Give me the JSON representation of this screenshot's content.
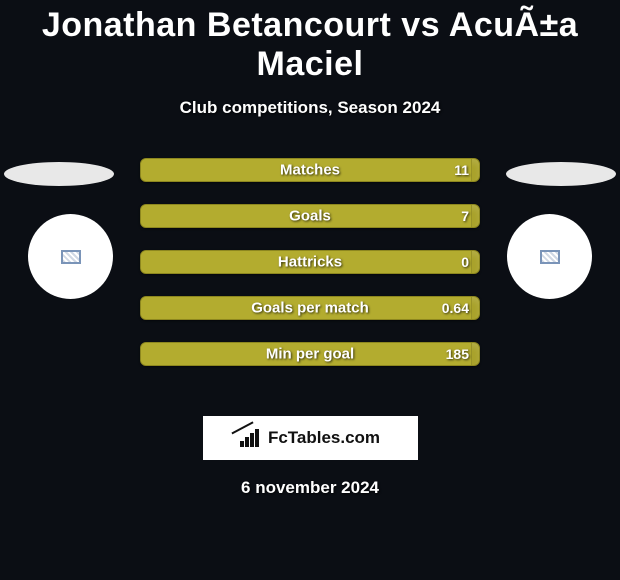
{
  "title": "Jonathan Betancourt vs AcuÃ±a Maciel",
  "subtitle": "Club competitions, Season 2024",
  "date": "6 november 2024",
  "brand": "FcTables.com",
  "colors": {
    "background": "#0b0e14",
    "bar_fill": "#b3ac2f",
    "bar_bg": "#a9a22b",
    "text": "#ffffff"
  },
  "stats": [
    {
      "label": "Matches",
      "value": "11",
      "fill_pct": 98
    },
    {
      "label": "Goals",
      "value": "7",
      "fill_pct": 98
    },
    {
      "label": "Hattricks",
      "value": "0",
      "fill_pct": 98
    },
    {
      "label": "Goals per match",
      "value": "0.64",
      "fill_pct": 98
    },
    {
      "label": "Min per goal",
      "value": "185",
      "fill_pct": 98
    }
  ]
}
